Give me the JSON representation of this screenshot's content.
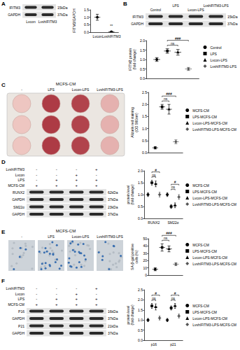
{
  "chart_data": [
    {
      "type": "scatter",
      "ylabel": "IFITM3/GAPDH",
      "categories": [
        "Lvcon",
        "LvshIFITM3"
      ],
      "series": [
        {
          "color": "#000000",
          "marker": "circle",
          "values": [
            1.0,
            0.03
          ],
          "errors": [
            0.2,
            0.01
          ]
        }
      ],
      "ylim": [
        0,
        1.5
      ],
      "yticks": [
        {
          "value": 0,
          "label": "0.0"
        },
        0.5,
        {
          "value": 1,
          "label": "1.0"
        },
        1.5
      ],
      "annotations": [
        {
          "text": "**",
          "category": 1
        }
      ]
    },
    {
      "type": "scatter",
      "ylabel": "IFITM3 protein\n(fold change)",
      "categories": [
        null
      ],
      "tick_labels": "y",
      "legend": "right",
      "series": [
        {
          "name": "Control",
          "color": "#000000",
          "marker": "circle",
          "values": [
            1.0
          ],
          "errors": [
            0.1
          ]
        },
        {
          "name": "LPS",
          "color": "#000000",
          "marker": "rect",
          "values": [
            1.45
          ],
          "errors": [
            0.12
          ]
        },
        {
          "name": "Lvcon-LPS",
          "color": "#000000",
          "marker": "triangle",
          "values": [
            1.38
          ],
          "errors": [
            0.15
          ]
        },
        {
          "name": "LvshIFITM3-LPS",
          "color": "#555555",
          "marker": "diamond",
          "values": [
            0.5
          ],
          "errors": [
            0.08
          ]
        }
      ],
      "ylim": [
        0,
        2
      ],
      "yticks": [
        {
          "value": 0,
          "label": "0.0"
        },
        0.5,
        {
          "value": 1,
          "label": "1.0"
        },
        1.5,
        {
          "value": 2,
          "label": "2.0"
        }
      ],
      "annotations": [
        {
          "text": "ns",
          "category": 0,
          "between": [
            "LPS",
            "Lvcon-LPS"
          ]
        },
        {
          "text": "###",
          "category": 0,
          "between": [
            "LPS",
            "LvshIFITM3-LPS"
          ]
        }
      ]
    },
    {
      "type": "scatter",
      "ylabel": "Alizarin red staining\n(OD 560nm)",
      "categories": [
        null
      ],
      "tick_labels": "y",
      "legend": "right",
      "series": [
        {
          "name": "MCFS-CM",
          "color": "#000000",
          "marker": "circle",
          "values": [
            0.2
          ],
          "errors": [
            0.05
          ]
        },
        {
          "name": "LPS-MCFS-CM",
          "color": "#000000",
          "marker": "rect",
          "values": [
            1.9
          ],
          "errors": [
            0.1
          ]
        },
        {
          "name": "Lvcon-LPS-MCFS-CM",
          "color": "#000000",
          "marker": "triangle",
          "values": [
            1.8
          ],
          "errors": [
            0.2
          ]
        },
        {
          "name": "LvshIFITM3-LPS-MCFS-CM",
          "color": "#555555",
          "marker": "diamond",
          "values": [
            0.45
          ],
          "errors": [
            0.08
          ]
        }
      ],
      "ylim": [
        0,
        2.5
      ],
      "yticks": [
        {
          "value": 0,
          "label": "0.0"
        },
        0.5,
        {
          "value": 1,
          "label": "1.0"
        },
        1.5,
        {
          "value": 2,
          "label": "2.0"
        },
        2.5
      ],
      "annotations": [
        {
          "text": "ns",
          "category": 0,
          "between": [
            "LPS-MCFS-CM",
            "Lvcon-LPS-MCFS-CM"
          ]
        },
        {
          "text": "###",
          "category": 0,
          "between": [
            "LPS-MCFS-CM",
            "LvshIFITM3-LPS-MCFS-CM"
          ]
        }
      ]
    },
    {
      "type": "scatter",
      "ylabel": "protein level\n(fold change)",
      "categories": [
        "RUNX2",
        "SM22α"
      ],
      "legend": "right",
      "series": [
        {
          "name": "MCFS-CM",
          "color": "#000000",
          "marker": "circle",
          "values": [
            1.0,
            1.0
          ],
          "errors": [
            0.08,
            0.08
          ]
        },
        {
          "name": "LPS-MCFS-CM",
          "color": "#000000",
          "marker": "rect",
          "values": [
            1.5,
            0.5
          ],
          "errors": [
            0.1,
            0.08
          ]
        },
        {
          "name": "Lvcon-LPS-MCFS-CM",
          "color": "#000000",
          "marker": "triangle",
          "values": [
            1.45,
            0.55
          ],
          "errors": [
            0.12,
            0.1
          ]
        },
        {
          "name": "LvshIFITM3-LPS-MCFS-CM",
          "color": "#555555",
          "marker": "diamond",
          "values": [
            1.0,
            0.9
          ],
          "errors": [
            0.1,
            0.1
          ]
        }
      ],
      "ylim": [
        0,
        2
      ],
      "yticks": [
        {
          "value": 0,
          "label": "0.0"
        },
        0.5,
        {
          "value": 1,
          "label": "1.0"
        },
        1.5,
        {
          "value": 2,
          "label": "2.0"
        }
      ],
      "annotations": [
        {
          "text": "ns",
          "category": 0,
          "between": [
            "LPS-MCFS-CM",
            "Lvcon-LPS-MCFS-CM"
          ]
        },
        {
          "text": "#",
          "category": 0,
          "between": [
            "LPS-MCFS-CM",
            "LvshIFITM3-LPS-MCFS-CM"
          ]
        },
        {
          "text": "ns",
          "category": 1,
          "between": [
            "LPS-MCFS-CM",
            "Lvcon-LPS-MCFS-CM"
          ]
        },
        {
          "text": "#",
          "category": 1,
          "between": [
            "LPS-MCFS-CM",
            "LvshIFITM3-LPS-MCFS-CM"
          ]
        }
      ]
    },
    {
      "type": "scatter",
      "ylabel": "SA-β-gal positive\ncells (%)",
      "categories": [
        null
      ],
      "tick_labels": "y",
      "legend": "right",
      "series": [
        {
          "name": "MCFS-CM",
          "color": "#000000",
          "marker": "circle",
          "values": [
            8
          ],
          "errors": [
            2
          ]
        },
        {
          "name": "LPS-MCFS-CM",
          "color": "#000000",
          "marker": "rect",
          "values": [
            38
          ],
          "errors": [
            5
          ]
        },
        {
          "name": "Lvcon-LPS-MCFS-CM",
          "color": "#000000",
          "marker": "triangle",
          "values": [
            36
          ],
          "errors": [
            4
          ]
        },
        {
          "name": "LvshIFITM3-LPS-MCFS-CM",
          "color": "#555555",
          "marker": "diamond",
          "values": [
            15
          ],
          "errors": [
            2
          ]
        }
      ],
      "ylim": [
        0,
        50
      ],
      "yticks": [
        0,
        10,
        20,
        30,
        40,
        50
      ],
      "annotations": [
        {
          "text": "ns",
          "category": 0,
          "between": [
            "LPS-MCFS-CM",
            "Lvcon-LPS-MCFS-CM"
          ]
        },
        {
          "text": "###",
          "category": 0,
          "between": [
            "LPS-MCFS-CM",
            "LvshIFITM3-LPS-MCFS-CM"
          ]
        }
      ]
    },
    {
      "type": "scatter",
      "ylabel": "protein level\n(fold change)",
      "categories": [
        "p16",
        "p21"
      ],
      "legend": "right",
      "series": [
        {
          "name": "MCFS-CM",
          "color": "#000000",
          "marker": "circle",
          "values": [
            1.0,
            1.0
          ],
          "errors": [
            0.08,
            0.08
          ]
        },
        {
          "name": "LPS-MCFS-CM",
          "color": "#000000",
          "marker": "rect",
          "values": [
            1.7,
            1.6
          ],
          "errors": [
            0.12,
            0.1
          ]
        },
        {
          "name": "Lvcon-LPS-MCFS-CM",
          "color": "#000000",
          "marker": "triangle",
          "values": [
            1.65,
            1.7
          ],
          "errors": [
            0.15,
            0.12
          ]
        },
        {
          "name": "LvshIFITM3-LPS-MCFS-CM",
          "color": "#555555",
          "marker": "diamond",
          "values": [
            1.1,
            1.2
          ],
          "errors": [
            0.1,
            0.1
          ]
        }
      ],
      "ylim": [
        0,
        2.5
      ],
      "yticks": [
        {
          "value": 0,
          "label": "0.0"
        },
        0.5,
        {
          "value": 1,
          "label": "1.0"
        },
        1.5,
        {
          "value": 2,
          "label": "2.0"
        },
        2.5
      ],
      "annotations": [
        {
          "text": "ns",
          "category": 0,
          "between": [
            "LPS-MCFS-CM",
            "Lvcon-LPS-MCFS-CM"
          ]
        },
        {
          "text": "#",
          "category": 0,
          "between": [
            "LPS-MCFS-CM",
            "LvshIFITM3-LPS-MCFS-CM"
          ]
        },
        {
          "text": "ns",
          "category": 1,
          "between": [
            "LPS-MCFS-CM",
            "Lvcon-LPS-MCFS-CM"
          ]
        },
        {
          "text": "#",
          "category": 1,
          "between": [
            "LPS-MCFS-CM",
            "LvshIFITM3-LPS-MCFS-CM"
          ]
        }
      ]
    }
  ],
  "figure": {
    "panels": [
      {
        "label": "A",
        "blot": {
          "lanes": [
            "Lvcon",
            "LvshIFITM3"
          ],
          "bands": [
            {
              "name": "IFITM3",
              "size": "15kDa"
            },
            {
              "name": "GAPDH",
              "size": "37kDa"
            }
          ]
        }
      },
      {
        "label": "B",
        "blot": {
          "lanes": [
            "Control",
            "LPS",
            "Lvcon-LPS",
            "LvshIFITM3-LPS"
          ],
          "bands": [
            {
              "name": "IFITM3",
              "size": "15kDa"
            },
            {
              "name": "GAPDH",
              "size": "37kDa"
            }
          ]
        }
      },
      {
        "label": "C",
        "plate": {
          "header": "MCFS-CM",
          "columns": [
            "-",
            "LPS",
            "Lvcon-LPS",
            "LvshIFITM3-LPS"
          ]
        }
      },
      {
        "label": "D",
        "blot": {
          "conditions": [
            {
              "name": "LvshIFITM3",
              "marks": [
                "-",
                "-",
                "-",
                "+"
              ]
            },
            {
              "name": "Lvcon",
              "marks": [
                "-",
                "-",
                "+",
                "-"
              ]
            },
            {
              "name": "LPS",
              "marks": [
                "-",
                "+",
                "+",
                "+"
              ]
            },
            {
              "name": "MCFS-CM",
              "marks": [
                "+",
                "+",
                "+",
                "+"
              ]
            }
          ],
          "bands": [
            {
              "name": "RUNX2",
              "size": "62kDa"
            },
            {
              "name": "GAPDH",
              "size": "37kDa"
            },
            {
              "name": "SM22α",
              "size": "23kDa"
            },
            {
              "name": "GAPDH",
              "size": "37kDa"
            }
          ]
        }
      },
      {
        "label": "E",
        "images": {
          "header": "MCFS-CM",
          "columns": [
            "-",
            "LPS",
            "Lvcon-LPS",
            "LvshIFITM3-LPS"
          ]
        }
      },
      {
        "label": "F",
        "blot": {
          "conditions": [
            {
              "name": "LvshIFITM3",
              "marks": [
                "-",
                "-",
                "-",
                "+"
              ]
            },
            {
              "name": "Lvcon",
              "marks": [
                "-",
                "-",
                "+",
                "-"
              ]
            },
            {
              "name": "LPS",
              "marks": [
                "-",
                "+",
                "+",
                "+"
              ]
            },
            {
              "name": "MCFS-CM",
              "marks": [
                "+",
                "+",
                "+",
                "+"
              ]
            }
          ],
          "bands": [
            {
              "name": "P16",
              "size": "16kDa"
            },
            {
              "name": "GAPDH",
              "size": "37kDa"
            },
            {
              "name": "P21",
              "size": "21kDa"
            },
            {
              "name": "GAPDH",
              "size": "37kDa"
            }
          ]
        }
      }
    ]
  }
}
